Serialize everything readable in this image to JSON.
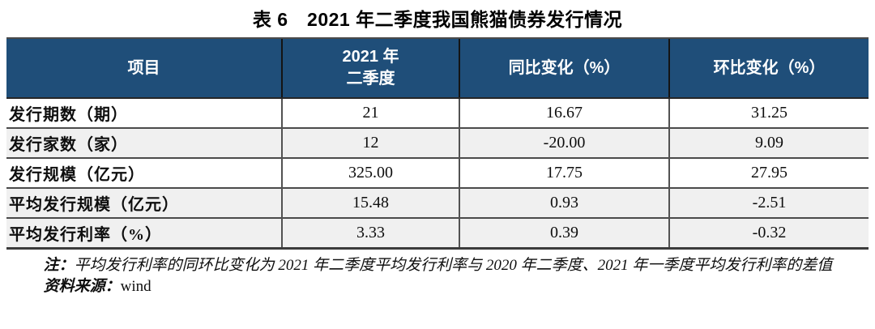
{
  "colors": {
    "header_bg": "#1F4E79",
    "header_text": "#FFFFFF",
    "row_alt_bg": "#F0F0F0",
    "border_dark": "#3C3C3C"
  },
  "title": "表 6　2021 年二季度我国熊猫债券发行情况",
  "table": {
    "header": {
      "item": "项目",
      "period_line1": "2021 年",
      "period_line2": "二季度",
      "yoy": "同比变化（%）",
      "mom": "环比变化（%）"
    },
    "rows": [
      {
        "label": "发行期数（期）",
        "value": "21",
        "yoy": "16.67",
        "mom": "31.25"
      },
      {
        "label": "发行家数（家）",
        "value": "12",
        "yoy": "-20.00",
        "mom": "9.09"
      },
      {
        "label": "发行规模（亿元）",
        "value": "325.00",
        "yoy": "17.75",
        "mom": "27.95"
      },
      {
        "label": "平均发行规模（亿元）",
        "value": "15.48",
        "yoy": "0.93",
        "mom": "-2.51"
      },
      {
        "label": "平均发行利率（%）",
        "value": "3.33",
        "yoy": "0.39",
        "mom": "-0.32"
      }
    ]
  },
  "notes": {
    "note_label": "注：",
    "note_text": "平均发行利率的同环比变化为 2021 年二季度平均发行利率与 2020 年二季度、2021 年一季度平均发行利率的差值",
    "source_label": "资料来源：",
    "source_value": "wind"
  }
}
